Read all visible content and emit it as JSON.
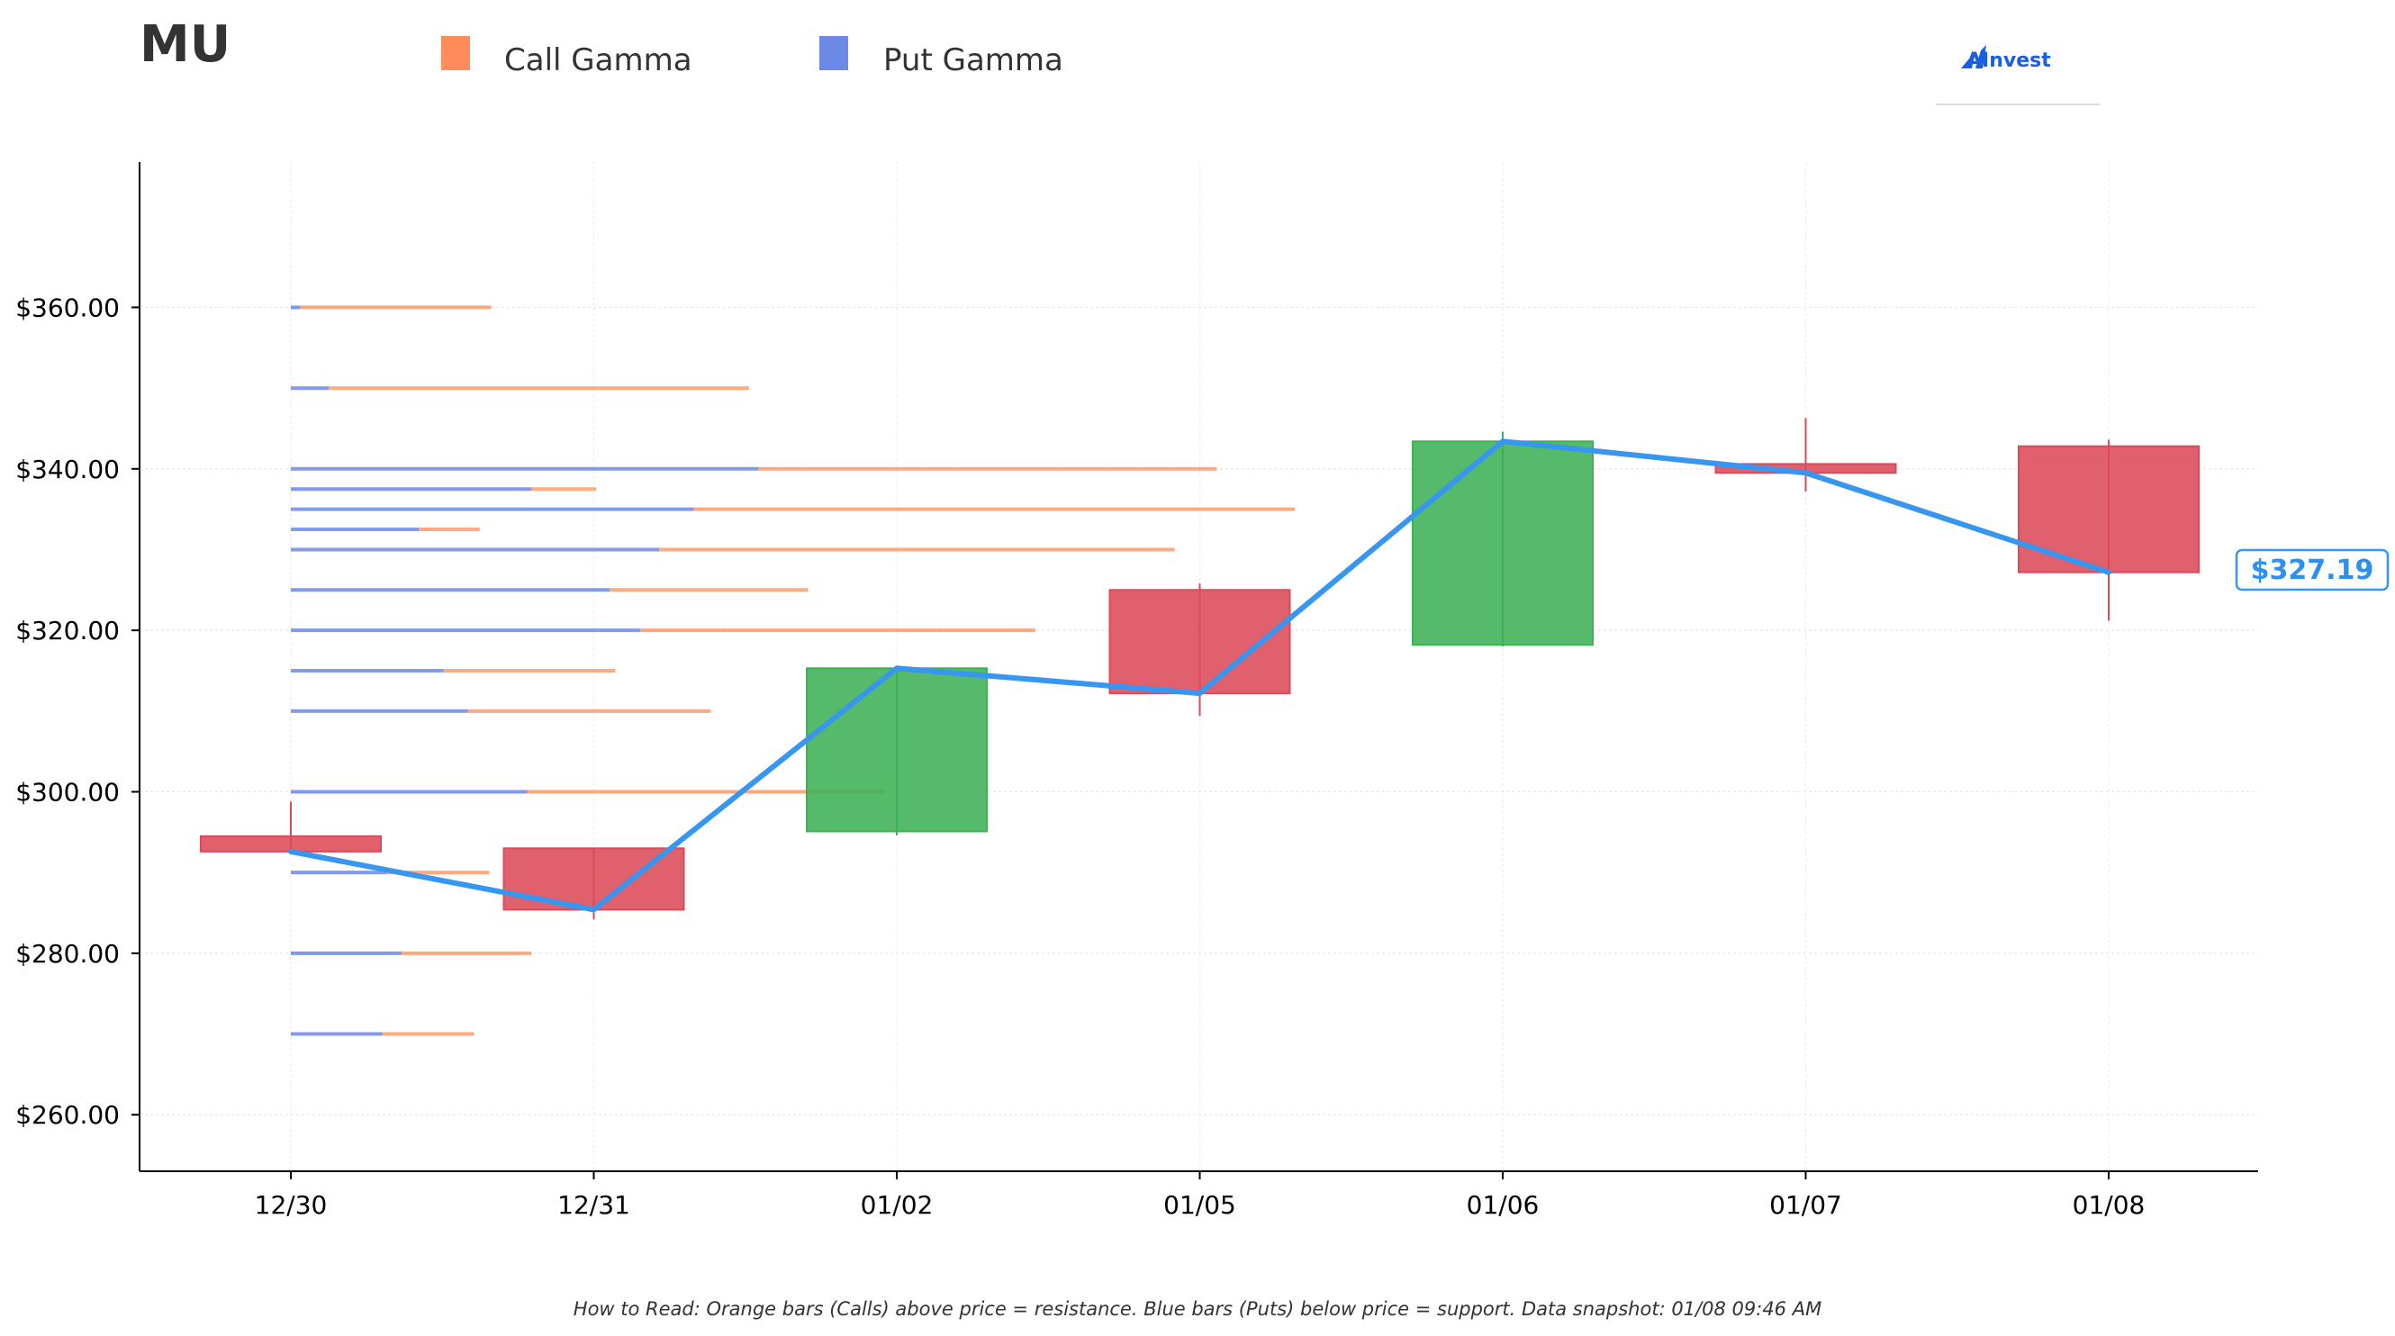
{
  "header": {
    "ticker": "MU",
    "brand": "AInvest"
  },
  "legend": {
    "call_label": "Call Gamma",
    "put_label": "Put Gamma"
  },
  "footnote": "How to Read: Orange bars (Calls) above price = resistance. Blue bars (Puts) below price = support. Data snapshot: 01/08 09:46 AM",
  "current_price_label": "$327.19",
  "colors": {
    "call": "#ff8c5a",
    "put": "#6b8ae6",
    "up": "#3db255",
    "down": "#dc4a5a",
    "price_line": "#3696f0",
    "title": "#333333"
  },
  "chart_data": {
    "type": "candlestick",
    "categories": [
      "12/30",
      "12/31",
      "01/02",
      "01/05",
      "01/06",
      "01/07",
      "01/08"
    ],
    "ylim": [
      253,
      378
    ],
    "yticks": [
      260,
      280,
      300,
      320,
      340,
      360
    ],
    "ytick_labels": [
      "$260.00",
      "$280.00",
      "$300.00",
      "$320.00",
      "$340.00",
      "$360.00"
    ],
    "grid": true,
    "candles": [
      {
        "date": "12/30",
        "open": 294.5,
        "high": 298.8,
        "low": 292.3,
        "close": 292.6
      },
      {
        "date": "12/31",
        "open": 293.0,
        "high": 293.0,
        "low": 284.2,
        "close": 285.4
      },
      {
        "date": "01/02",
        "open": 295.1,
        "high": 315.3,
        "low": 294.6,
        "close": 315.3
      },
      {
        "date": "01/05",
        "open": 325.0,
        "high": 325.8,
        "low": 309.4,
        "close": 312.2
      },
      {
        "date": "01/06",
        "open": 318.2,
        "high": 344.6,
        "low": 318.0,
        "close": 343.4
      },
      {
        "date": "01/07",
        "open": 340.6,
        "high": 346.3,
        "low": 337.2,
        "close": 339.5
      },
      {
        "date": "01/08",
        "open": 342.8,
        "high": 343.6,
        "low": 321.2,
        "close": 327.19
      }
    ],
    "price_line": [
      292.6,
      285.4,
      315.3,
      312.2,
      343.4,
      339.5,
      327.19
    ],
    "gamma_levels": [
      {
        "strike": 360,
        "put": 0.05,
        "call": 1.0
      },
      {
        "strike": 350,
        "put": 0.2,
        "call": 2.2
      },
      {
        "strike": 340,
        "put": 2.45,
        "call": 2.4
      },
      {
        "strike": 337.5,
        "put": 1.26,
        "call": 0.34
      },
      {
        "strike": 335,
        "put": 2.11,
        "call": 3.15
      },
      {
        "strike": 332.5,
        "put": 0.67,
        "call": 0.32
      },
      {
        "strike": 330,
        "put": 1.93,
        "call": 2.7
      },
      {
        "strike": 325,
        "put": 1.67,
        "call": 1.04
      },
      {
        "strike": 320,
        "put": 1.83,
        "call": 2.07
      },
      {
        "strike": 315,
        "put": 0.8,
        "call": 0.9
      },
      {
        "strike": 310,
        "put": 0.93,
        "call": 1.27
      },
      {
        "strike": 300,
        "put": 1.24,
        "call": 1.87
      },
      {
        "strike": 290,
        "put": 0.5,
        "call": 0.54
      },
      {
        "strike": 280,
        "put": 0.58,
        "call": 0.68
      },
      {
        "strike": 270,
        "put": 0.48,
        "call": 0.48
      }
    ]
  }
}
